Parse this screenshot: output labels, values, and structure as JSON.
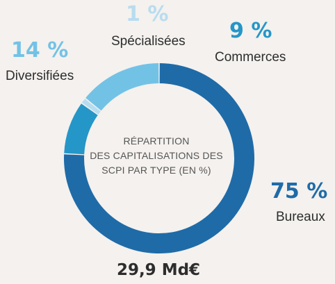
{
  "chart_data": {
    "type": "pie",
    "donut": true,
    "categories": [
      "Bureaux",
      "Commerces",
      "Spécialisées",
      "Diversifiées"
    ],
    "values": [
      75,
      9,
      1,
      14
    ],
    "value_labels": [
      "75 %",
      "9 %",
      "1 %",
      "14 %"
    ],
    "colors": [
      "#1f6ba8",
      "#2596c8",
      "#b8dcef",
      "#72c2e6"
    ],
    "center_title": [
      "RÉPARTITION",
      "DES CAPITALISATIONS DES",
      "SCPI PAR TYPE (EN %)"
    ],
    "total": "29,9 Md€",
    "legend": "none"
  }
}
